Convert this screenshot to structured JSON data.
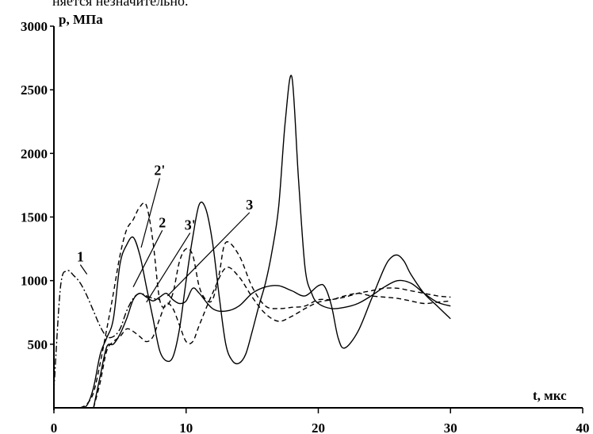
{
  "header_text": "няется незначительно.",
  "chart_data": {
    "type": "line",
    "xlabel": "t, мкс",
    "ylabel": "p, МПа",
    "xlim": [
      0,
      40
    ],
    "ylim": [
      0,
      3000
    ],
    "x_ticks": [
      0,
      10,
      20,
      30,
      40
    ],
    "y_ticks": [
      500,
      1000,
      1500,
      2000,
      2500,
      3000
    ],
    "x_tick_labels": [
      "0",
      "10",
      "20",
      "30",
      "40"
    ],
    "y_tick_labels": [
      "500",
      "1000",
      "1500",
      "2000",
      "2500",
      "3000"
    ],
    "grid": false,
    "legend": "none",
    "curve_labels": [
      {
        "text": "1",
        "x": 2.0,
        "y": 1150,
        "target": [
          2.5,
          1050
        ]
      },
      {
        "text": "2",
        "x": 8.2,
        "y": 1420,
        "target": [
          6.0,
          950
        ]
      },
      {
        "text": "2'",
        "x": 8.0,
        "y": 1830,
        "target": [
          6.6,
          1260
        ]
      },
      {
        "text": "3'",
        "x": 10.3,
        "y": 1400,
        "target": [
          7.0,
          830
        ]
      },
      {
        "text": "3",
        "x": 14.8,
        "y": 1560,
        "target": [
          8.6,
          880
        ]
      }
    ],
    "series": [
      {
        "style": "dashdot",
        "x": [
          0.0,
          0.5,
          1.0,
          1.5,
          2.0,
          2.5,
          3.0,
          3.5,
          4.0,
          4.5,
          5.0,
          5.5,
          6.0,
          6.5,
          7.0,
          7.5,
          8.0
        ],
        "y": [
          140,
          950,
          1075,
          1040,
          980,
          880,
          760,
          640,
          560,
          560,
          620,
          760,
          860,
          900,
          880,
          860,
          850
        ]
      },
      {
        "style": "solid",
        "x": [
          2.0,
          2.5,
          3.0,
          3.5,
          4.0,
          4.5,
          5.0,
          5.5,
          6.0,
          6.5,
          7.0,
          7.5,
          8.0,
          8.5,
          9.0,
          9.5,
          10.0,
          10.5,
          11.0,
          11.5,
          12.0,
          12.5,
          13.0,
          13.5,
          14.0,
          14.5,
          15.0,
          15.5,
          16.0,
          16.5,
          17.0,
          17.5,
          18.0,
          18.5,
          19.0,
          19.5,
          20.0,
          21.0,
          22.0,
          23.0,
          24.0,
          25.0,
          26.0,
          27.0,
          28.0,
          29.0,
          30.0
        ],
        "y": [
          0,
          20,
          160,
          420,
          550,
          700,
          1130,
          1280,
          1340,
          1200,
          950,
          700,
          450,
          370,
          400,
          620,
          1000,
          1340,
          1600,
          1560,
          1300,
          880,
          500,
          370,
          350,
          420,
          600,
          800,
          980,
          1230,
          1580,
          2250,
          2600,
          1800,
          1100,
          900,
          820,
          780,
          790,
          820,
          880,
          950,
          1000,
          980,
          900,
          830,
          800
        ]
      },
      {
        "style": "dashed",
        "x": [
          2.0,
          2.5,
          3.0,
          3.5,
          4.0,
          4.5,
          5.0,
          5.5,
          6.0,
          6.5,
          7.0,
          7.5,
          8.0,
          8.5,
          9.0,
          9.5,
          10.0,
          10.5,
          11.0,
          11.5,
          12.0,
          12.5,
          13.0,
          14.0,
          15.0,
          16.0,
          17.0,
          18.0,
          19.0,
          20.0,
          21.0,
          22.0,
          23.0,
          24.0,
          25.0,
          26.0,
          27.0,
          28.0,
          29.0,
          30.0
        ],
        "y": [
          0,
          30,
          120,
          350,
          620,
          900,
          1200,
          1400,
          1480,
          1580,
          1590,
          1300,
          850,
          800,
          900,
          1150,
          1250,
          1200,
          950,
          850,
          850,
          1050,
          1300,
          1200,
          950,
          800,
          780,
          790,
          800,
          850,
          850,
          880,
          900,
          880,
          870,
          860,
          840,
          820,
          830,
          840
        ]
      },
      {
        "style": "solid",
        "x": [
          3.0,
          3.5,
          4.0,
          4.5,
          5.0,
          5.5,
          6.0,
          6.5,
          7.0,
          7.5,
          8.0,
          8.5,
          9.0,
          9.5,
          10.0,
          10.5,
          11.0,
          12.0,
          13.0,
          14.0,
          15.0,
          16.0,
          17.0,
          18.0,
          19.0,
          20.0,
          20.5,
          21.0,
          21.5,
          22.0,
          23.0,
          24.0,
          25.0,
          25.5,
          26.0,
          26.5,
          27.0,
          28.0,
          29.0,
          30.0
        ],
        "y": [
          0,
          250,
          480,
          500,
          580,
          700,
          850,
          900,
          870,
          840,
          870,
          900,
          850,
          820,
          840,
          940,
          900,
          780,
          760,
          800,
          900,
          950,
          960,
          920,
          880,
          960,
          950,
          800,
          550,
          470,
          600,
          850,
          1100,
          1180,
          1200,
          1150,
          1050,
          900,
          800,
          700
        ]
      },
      {
        "style": "dashed",
        "x": [
          3.0,
          3.5,
          4.0,
          4.5,
          5.0,
          5.5,
          6.0,
          6.5,
          7.0,
          7.5,
          8.0,
          8.5,
          9.0,
          9.5,
          10.0,
          10.5,
          11.0,
          12.0,
          13.0,
          14.0,
          15.0,
          16.0,
          17.0,
          18.0,
          19.0,
          20.0,
          21.0,
          22.0,
          23.0,
          24.0,
          25.0,
          26.0,
          27.0,
          28.0,
          29.0,
          30.0
        ],
        "y": [
          0,
          200,
          450,
          520,
          560,
          620,
          600,
          560,
          520,
          560,
          700,
          820,
          780,
          650,
          520,
          520,
          650,
          900,
          1100,
          1030,
          870,
          740,
          680,
          720,
          780,
          830,
          850,
          870,
          900,
          920,
          940,
          940,
          920,
          900,
          880,
          870
        ]
      }
    ]
  }
}
